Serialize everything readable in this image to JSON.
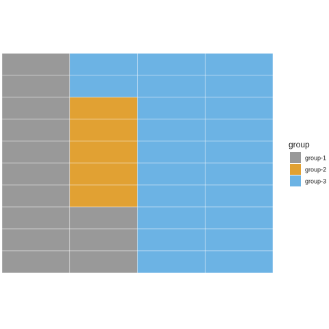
{
  "chart_data": {
    "type": "heatmap",
    "title": "",
    "xlabel": "",
    "ylabel": "",
    "columns": 4,
    "rows": 10,
    "grid": "white tile borders, no axes",
    "legend_placement": "right",
    "legend": {
      "title": "group",
      "entries": [
        {
          "name": "group-1",
          "color": "#999999"
        },
        {
          "name": "group-2",
          "color": "#E1A133"
        },
        {
          "name": "group-3",
          "color": "#6CB3E4"
        }
      ]
    },
    "cells_by_row_top_to_bottom": [
      [
        "group-1",
        "group-3",
        "group-3",
        "group-3"
      ],
      [
        "group-1",
        "group-3",
        "group-3",
        "group-3"
      ],
      [
        "group-1",
        "group-2",
        "group-3",
        "group-3"
      ],
      [
        "group-1",
        "group-2",
        "group-3",
        "group-3"
      ],
      [
        "group-1",
        "group-2",
        "group-3",
        "group-3"
      ],
      [
        "group-1",
        "group-2",
        "group-3",
        "group-3"
      ],
      [
        "group-1",
        "group-2",
        "group-3",
        "group-3"
      ],
      [
        "group-1",
        "group-1",
        "group-3",
        "group-3"
      ],
      [
        "group-1",
        "group-1",
        "group-3",
        "group-3"
      ],
      [
        "group-1",
        "group-1",
        "group-3",
        "group-3"
      ]
    ]
  }
}
